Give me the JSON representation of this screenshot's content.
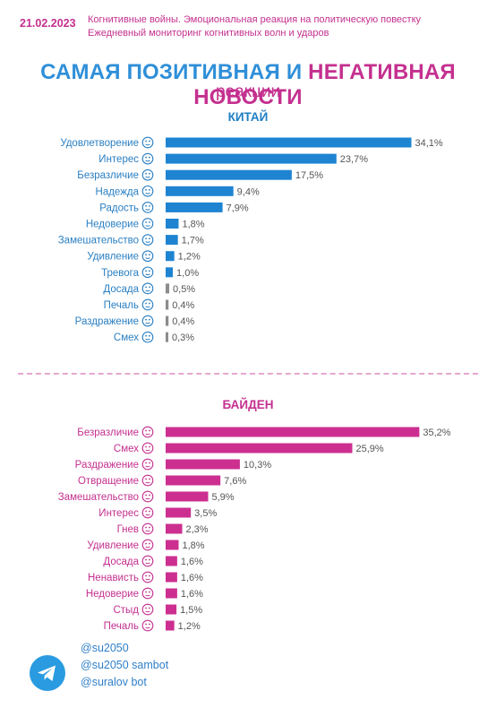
{
  "header": {
    "date": "21.02.2023",
    "line1": "Когнитивные войны. Эмоциональная реакция на политическую повестку",
    "line2": "Ежедневный мониторинг когнитивных волн и ударов"
  },
  "title": {
    "part1": "САМАЯ ПОЗИТИВНАЯ",
    "part2": " И ",
    "part3": "НЕГАТИВНАЯ НОВОСТИ",
    "subtitle": "реакции"
  },
  "colors": {
    "china_bar": "#1e84d2",
    "china_bar_small": "#8c8c8c",
    "biden_bar": "#cc2f90",
    "china_label": "#2a7fc2",
    "biden_label": "#c4308f"
  },
  "chart_data": [
    {
      "type": "bar",
      "orientation": "horizontal",
      "title": "КИТАЙ",
      "categories": [
        "Удовлетворение",
        "Интерес",
        "Безразличие",
        "Надежда",
        "Радость",
        "Недоверие",
        "Замешательство",
        "Удивление",
        "Тревога",
        "Досада",
        "Печаль",
        "Раздражение",
        "Смех"
      ],
      "icons": [
        "smile-icon",
        "interest-icon",
        "neutral-face-icon",
        "hope-icon",
        "joy-icon",
        "distrust-icon",
        "confused-icon",
        "surprised-icon",
        "anxious-icon",
        "annoyed-icon",
        "sad-icon",
        "irritated-icon",
        "laugh-icon"
      ],
      "values": [
        34.1,
        23.7,
        17.5,
        9.4,
        7.9,
        1.8,
        1.7,
        1.2,
        1.0,
        0.5,
        0.4,
        0.4,
        0.3
      ],
      "value_labels": [
        "34,1%",
        "23,7%",
        "17,5%",
        "9,4%",
        "7,9%",
        "1,8%",
        "1,7%",
        "1,2%",
        "1,0%",
        "0,5%",
        "0,4%",
        "0,4%",
        "0,3%"
      ],
      "grey_from_index": 9
    },
    {
      "type": "bar",
      "orientation": "horizontal",
      "title": "БАЙДЕН",
      "categories": [
        "Безразличие",
        "Смех",
        "Раздражение",
        "Отвращение",
        "Замешательство",
        "Интерес",
        "Гнев",
        "Удивление",
        "Досада",
        "Ненависть",
        "Недоверие",
        "Стыд",
        "Печаль"
      ],
      "icons": [
        "neutral-face-icon",
        "laugh-icon",
        "irritated-icon",
        "disgust-icon",
        "confused-icon",
        "interest-icon",
        "anger-icon",
        "surprised-icon",
        "annoyed-icon",
        "hate-icon",
        "distrust-icon",
        "shame-icon",
        "sad-icon"
      ],
      "values": [
        35.2,
        25.9,
        10.3,
        7.6,
        5.9,
        3.5,
        2.3,
        1.8,
        1.6,
        1.6,
        1.6,
        1.5,
        1.2
      ],
      "value_labels": [
        "35,2%",
        "25,9%",
        "10,3%",
        "7,6%",
        "5,9%",
        "3,5%",
        "2,3%",
        "1,8%",
        "1,6%",
        "1,6%",
        "1,6%",
        "1,5%",
        "1,2%"
      ]
    }
  ],
  "footer": {
    "icon": "telegram-icon",
    "handles": [
      "@su2050",
      "@su2050 sambot",
      "@suralov bot"
    ]
  }
}
